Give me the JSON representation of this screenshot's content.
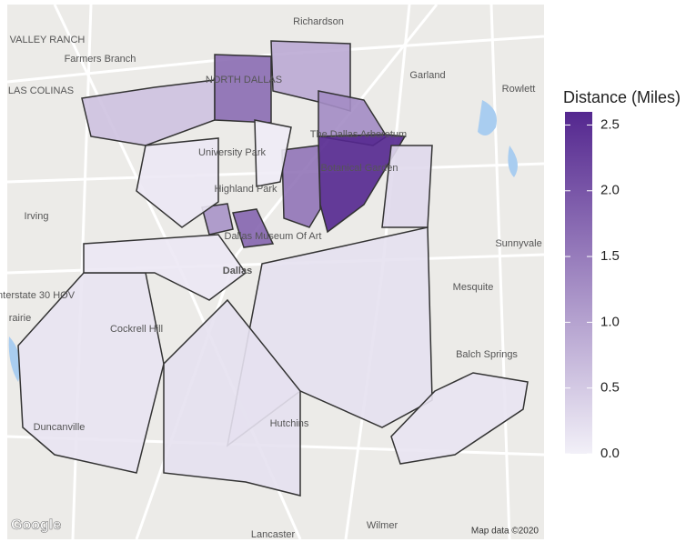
{
  "map": {
    "places": [
      "Richardson",
      "Garland",
      "Farmers Branch",
      "Irving",
      "Dallas",
      "Mesquite",
      "Sunnyvale",
      "Rowlett",
      "Balch Springs",
      "Cockrell Hill",
      "Duncanville",
      "Hutchins",
      "Wilmer",
      "Lancaster",
      "University Park",
      "Highland Park",
      "VALLEY RANCH",
      "LAS COLINAS",
      "NORTH DALLAS",
      "rairie",
      "Interstate 30 HOV",
      "Dallas Museum Of Art",
      "The Dallas Arboretum",
      "Botanical Garden"
    ],
    "regions": [
      0.6,
      1.7,
      0.9,
      1.3,
      2.6,
      1.6,
      1.2,
      1.8,
      0.2,
      0.15,
      0.15,
      0.1,
      0.05,
      0.3,
      0.1,
      0.2
    ],
    "attribution": [
      "Google",
      "Map data ©2020"
    ]
  },
  "legend": {
    "title": "Distance (Miles)",
    "range": [
      0,
      2.6
    ],
    "colors": [
      "#f2f0f8",
      "#54278f"
    ],
    "ticks": [
      {
        "value": 0,
        "label": "0.0"
      },
      0.5,
      {
        "value": 1,
        "label": "1.0"
      },
      1.5,
      {
        "value": 2,
        "label": "2.0"
      },
      2.5
    ]
  }
}
